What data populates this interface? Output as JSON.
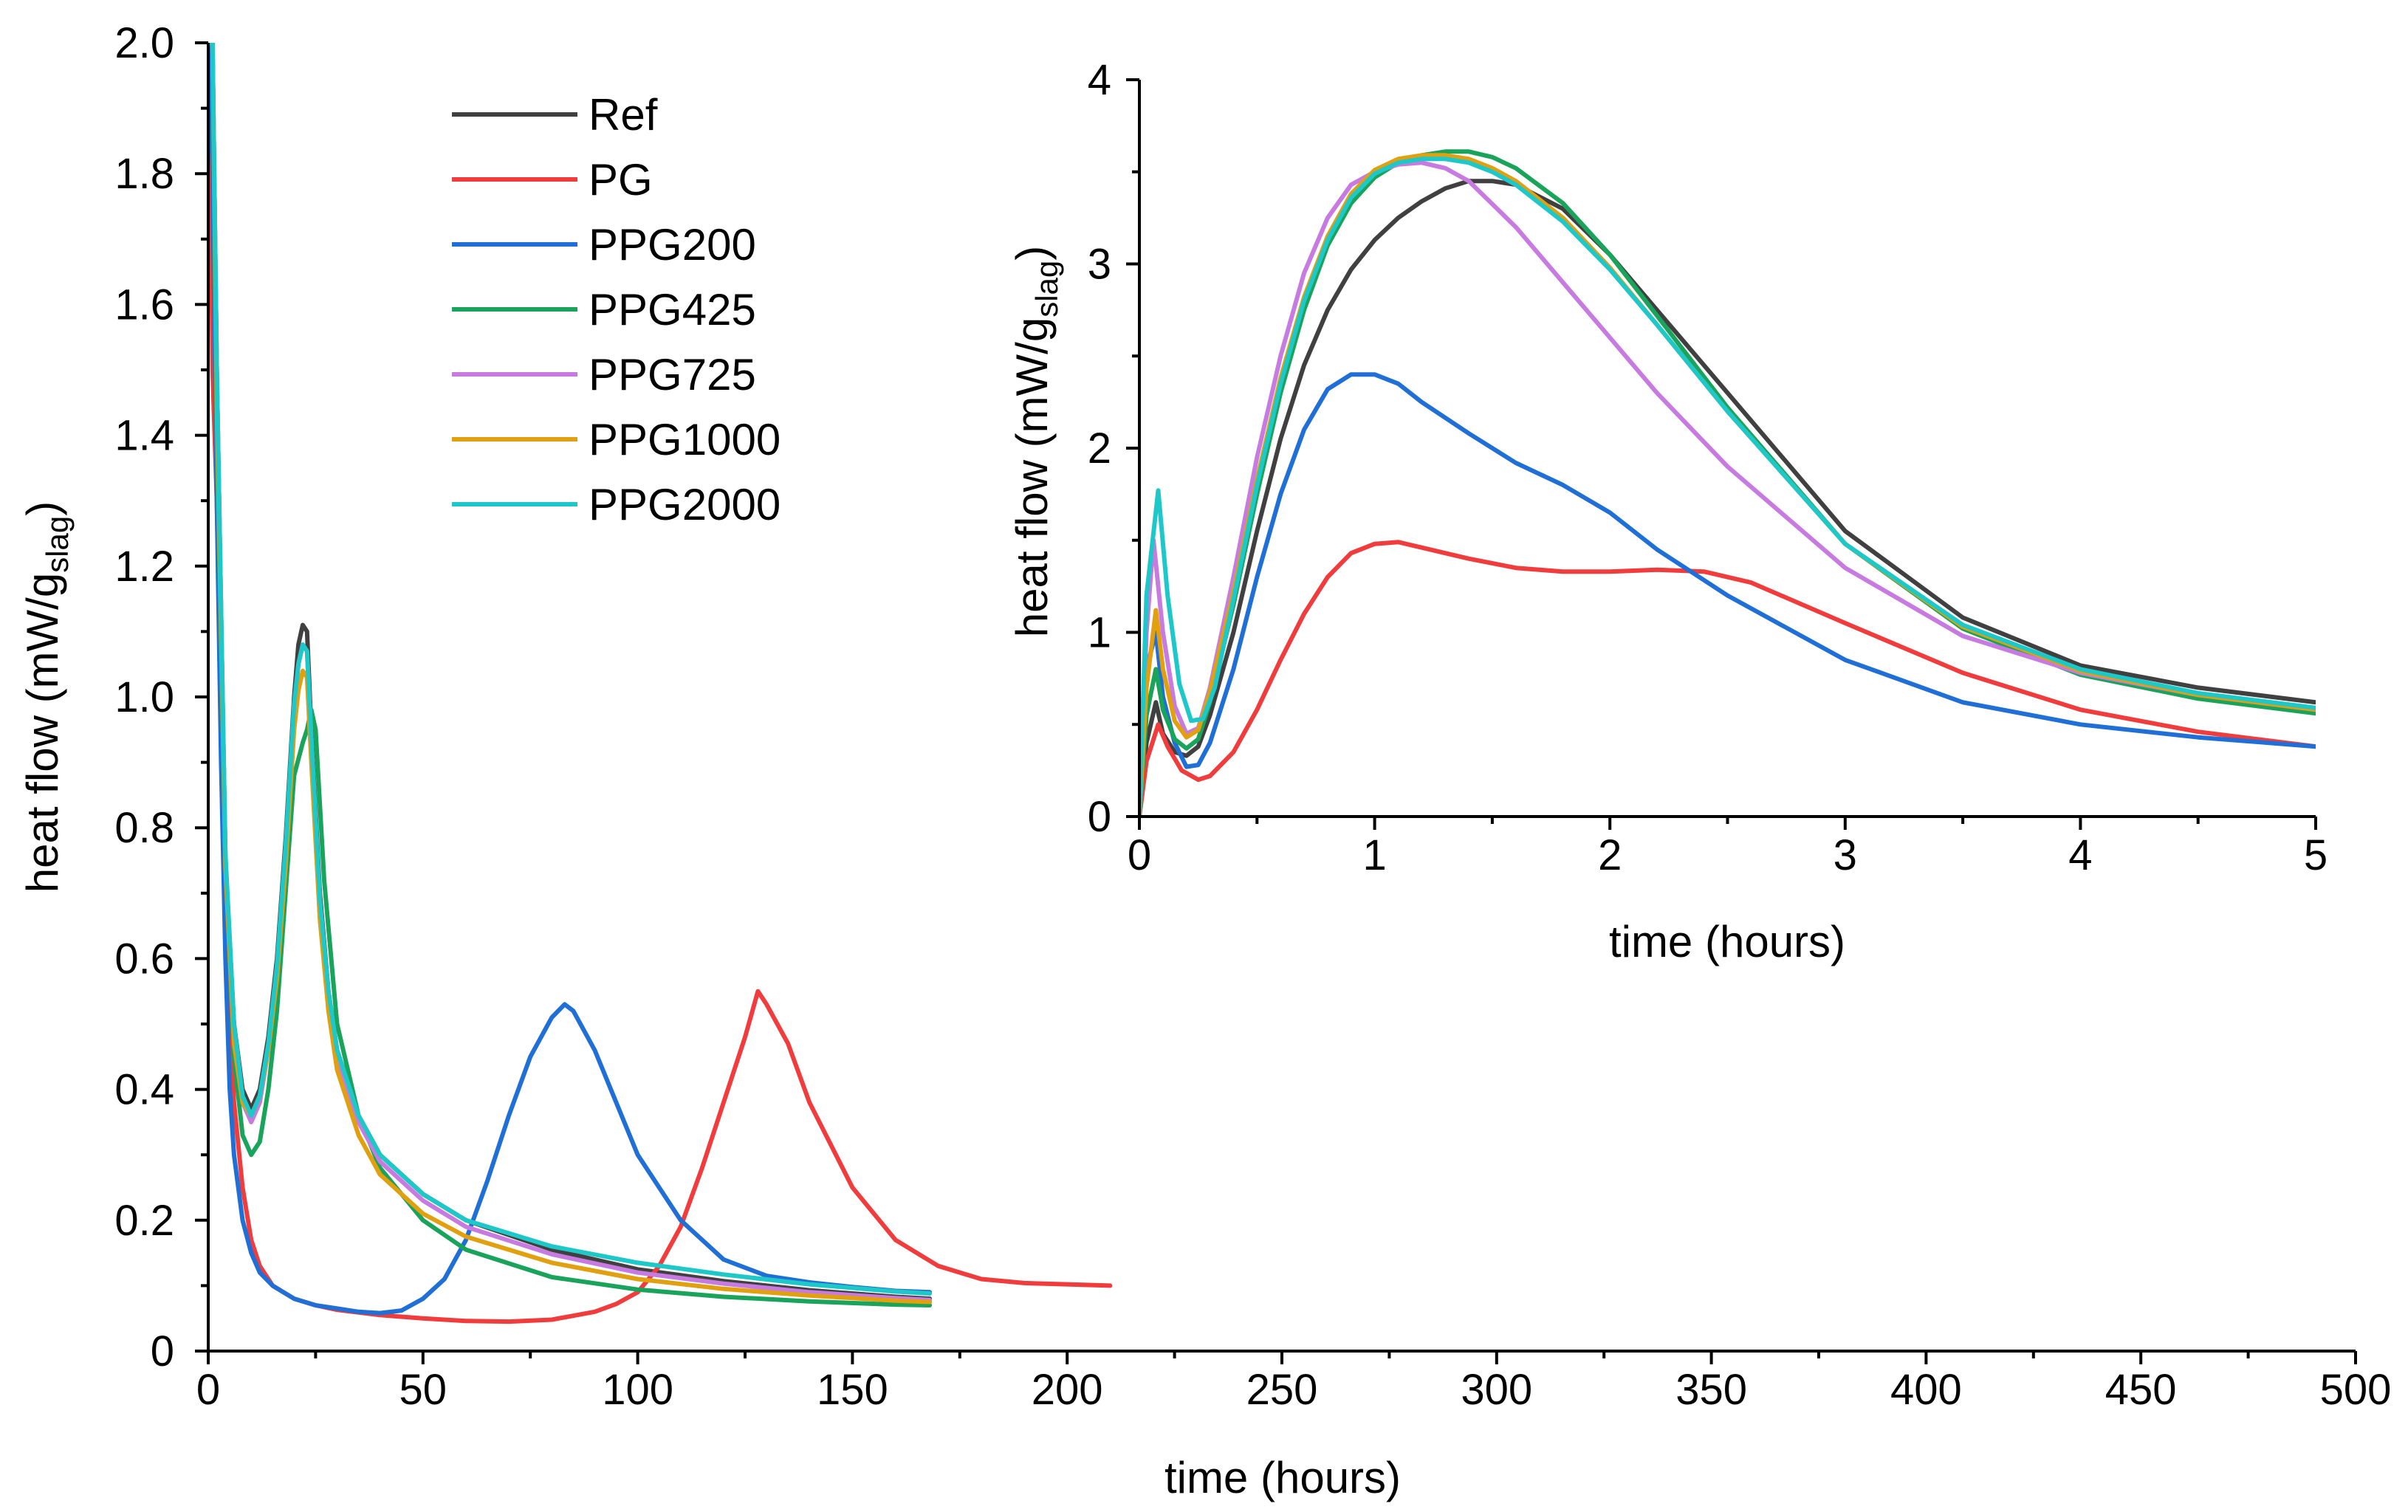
{
  "chart_data": [
    {
      "id": "main",
      "type": "line",
      "title": "",
      "xlabel": "time (hours)",
      "ylabel_main": "heat flow (mW/g",
      "ylabel_sub": "slag",
      "ylabel_close": ")",
      "xlim": [
        0,
        500
      ],
      "ylim": [
        0,
        2.0
      ],
      "xticks": [
        0,
        50,
        100,
        150,
        200,
        250,
        300,
        350,
        400,
        450,
        500
      ],
      "xtick_labels": [
        "0",
        "50",
        "100",
        "150",
        "200",
        "250",
        "300",
        "350",
        "400",
        "450",
        "500"
      ],
      "yticks": [
        0,
        0.2,
        0.4,
        0.6,
        0.8,
        1.0,
        1.2,
        1.4,
        1.6,
        1.8,
        2.0
      ],
      "ytick_labels": [
        "0",
        "0.2",
        "0.4",
        "0.6",
        "0.8",
        "1.0",
        "1.2",
        "1.4",
        "1.6",
        "1.8",
        "2.0"
      ],
      "legend_position": "top-left",
      "series": [
        {
          "name": "Ref",
          "color": "#404040",
          "x": [
            0.3,
            1,
            2,
            4,
            6,
            8,
            10,
            12,
            14,
            16,
            18,
            20,
            21,
            22,
            23,
            24,
            26,
            28,
            30,
            35,
            40,
            50,
            60,
            80,
            100,
            120,
            140,
            160,
            168
          ],
          "y": [
            2.0,
            2.0,
            1.5,
            0.75,
            0.5,
            0.4,
            0.37,
            0.4,
            0.48,
            0.6,
            0.78,
            1.0,
            1.08,
            1.11,
            1.1,
            0.95,
            0.7,
            0.55,
            0.46,
            0.36,
            0.3,
            0.24,
            0.2,
            0.155,
            0.125,
            0.107,
            0.093,
            0.083,
            0.08
          ]
        },
        {
          "name": "PG",
          "color": "#f03c3c",
          "x": [
            0.3,
            1,
            2,
            3,
            4,
            5,
            6,
            8,
            10,
            12,
            15,
            20,
            25,
            30,
            40,
            50,
            60,
            70,
            80,
            90,
            95,
            100,
            105,
            110,
            115,
            120,
            125,
            128,
            130,
            135,
            140,
            150,
            160,
            170,
            180,
            190,
            200,
            210
          ],
          "y": [
            2.0,
            1.5,
            1.3,
            1.0,
            0.7,
            0.5,
            0.38,
            0.25,
            0.17,
            0.13,
            0.1,
            0.08,
            0.07,
            0.063,
            0.055,
            0.05,
            0.046,
            0.045,
            0.048,
            0.06,
            0.072,
            0.09,
            0.13,
            0.19,
            0.28,
            0.38,
            0.48,
            0.55,
            0.53,
            0.47,
            0.38,
            0.25,
            0.17,
            0.13,
            0.11,
            0.104,
            0.102,
            0.1
          ]
        },
        {
          "name": "PPG200",
          "color": "#1f6fd6",
          "x": [
            0.3,
            1,
            2,
            3,
            4,
            5,
            6,
            8,
            10,
            12,
            15,
            20,
            25,
            30,
            35,
            40,
            45,
            50,
            55,
            60,
            65,
            70,
            75,
            80,
            83,
            85,
            90,
            95,
            100,
            110,
            120,
            130,
            140,
            150,
            160,
            168
          ],
          "y": [
            2.0,
            1.8,
            1.3,
            0.9,
            0.6,
            0.4,
            0.3,
            0.2,
            0.15,
            0.12,
            0.1,
            0.08,
            0.07,
            0.065,
            0.06,
            0.058,
            0.062,
            0.08,
            0.11,
            0.17,
            0.26,
            0.36,
            0.45,
            0.51,
            0.53,
            0.52,
            0.46,
            0.38,
            0.3,
            0.2,
            0.14,
            0.115,
            0.105,
            0.098,
            0.092,
            0.09
          ]
        },
        {
          "name": "PPG425",
          "color": "#1aa35a",
          "x": [
            0.3,
            1,
            2,
            4,
            6,
            8,
            10,
            12,
            14,
            16,
            18,
            20,
            22,
            23,
            24,
            25,
            27,
            30,
            35,
            40,
            50,
            60,
            80,
            100,
            120,
            140,
            160,
            168
          ],
          "y": [
            2.0,
            2.0,
            1.4,
            0.75,
            0.45,
            0.33,
            0.3,
            0.32,
            0.4,
            0.52,
            0.7,
            0.88,
            0.93,
            0.95,
            0.98,
            0.95,
            0.72,
            0.5,
            0.36,
            0.28,
            0.2,
            0.155,
            0.113,
            0.094,
            0.083,
            0.076,
            0.071,
            0.07
          ]
        },
        {
          "name": "PPG725",
          "color": "#c77be0",
          "x": [
            0.3,
            1,
            2,
            4,
            6,
            8,
            10,
            12,
            14,
            16,
            18,
            20,
            21,
            22,
            23,
            24,
            26,
            28,
            30,
            35,
            40,
            50,
            60,
            80,
            100,
            120,
            140,
            160,
            168
          ],
          "y": [
            2.0,
            2.0,
            1.5,
            0.75,
            0.48,
            0.38,
            0.35,
            0.38,
            0.46,
            0.58,
            0.76,
            0.98,
            1.05,
            1.08,
            1.07,
            0.93,
            0.68,
            0.54,
            0.45,
            0.35,
            0.29,
            0.23,
            0.19,
            0.148,
            0.12,
            0.103,
            0.09,
            0.081,
            0.078
          ]
        },
        {
          "name": "PPG1000",
          "color": "#e0a010",
          "x": [
            0.3,
            1,
            2,
            4,
            6,
            8,
            10,
            12,
            14,
            16,
            18,
            20,
            21,
            22,
            23,
            24,
            26,
            28,
            30,
            35,
            40,
            50,
            60,
            80,
            100,
            120,
            140,
            160,
            168
          ],
          "y": [
            2.0,
            2.0,
            1.45,
            0.74,
            0.47,
            0.38,
            0.36,
            0.39,
            0.46,
            0.57,
            0.74,
            0.95,
            1.01,
            1.04,
            1.03,
            0.9,
            0.66,
            0.52,
            0.43,
            0.33,
            0.27,
            0.21,
            0.175,
            0.135,
            0.11,
            0.095,
            0.085,
            0.077,
            0.075
          ]
        },
        {
          "name": "PPG2000",
          "color": "#1ec8c8",
          "x": [
            0.3,
            1,
            2,
            4,
            6,
            8,
            10,
            12,
            14,
            16,
            18,
            20,
            21,
            22,
            23,
            24,
            26,
            28,
            30,
            35,
            40,
            50,
            60,
            80,
            100,
            120,
            140,
            160,
            168
          ],
          "y": [
            2.0,
            2.0,
            1.5,
            0.76,
            0.5,
            0.39,
            0.36,
            0.39,
            0.47,
            0.59,
            0.77,
            0.99,
            1.05,
            1.08,
            1.07,
            0.94,
            0.69,
            0.55,
            0.46,
            0.36,
            0.3,
            0.24,
            0.2,
            0.16,
            0.135,
            0.117,
            0.102,
            0.091,
            0.088
          ]
        }
      ]
    },
    {
      "id": "inset",
      "type": "line",
      "title": "",
      "xlabel": "time (hours)",
      "ylabel_main": "heat flow (mW/g",
      "ylabel_sub": "slag",
      "ylabel_close": ")",
      "xlim": [
        0,
        5
      ],
      "ylim": [
        0,
        4
      ],
      "xticks": [
        0,
        1,
        2,
        3,
        4,
        5
      ],
      "xtick_labels": [
        "0",
        "1",
        "2",
        "3",
        "4",
        "5"
      ],
      "yticks": [
        0,
        1,
        2,
        3,
        4
      ],
      "ytick_labels": [
        "0",
        "1",
        "2",
        "3",
        "4"
      ],
      "series": [
        {
          "name": "Ref",
          "color": "#404040",
          "x": [
            0,
            0.03,
            0.07,
            0.1,
            0.15,
            0.2,
            0.25,
            0.3,
            0.4,
            0.5,
            0.6,
            0.7,
            0.8,
            0.9,
            1.0,
            1.1,
            1.2,
            1.3,
            1.4,
            1.5,
            1.6,
            1.8,
            2.0,
            2.2,
            2.5,
            3.0,
            3.5,
            4.0,
            4.5,
            5.0
          ],
          "y": [
            0,
            0.4,
            0.62,
            0.45,
            0.35,
            0.33,
            0.38,
            0.55,
            1.0,
            1.55,
            2.05,
            2.45,
            2.75,
            2.97,
            3.13,
            3.25,
            3.34,
            3.41,
            3.45,
            3.45,
            3.43,
            3.3,
            3.05,
            2.75,
            2.3,
            1.55,
            1.08,
            0.82,
            0.7,
            0.62
          ]
        },
        {
          "name": "PG",
          "color": "#f03c3c",
          "x": [
            0,
            0.03,
            0.08,
            0.12,
            0.18,
            0.25,
            0.3,
            0.4,
            0.5,
            0.6,
            0.7,
            0.8,
            0.9,
            1.0,
            1.1,
            1.2,
            1.4,
            1.6,
            1.8,
            2.0,
            2.2,
            2.4,
            2.6,
            3.0,
            3.5,
            4.0,
            4.5,
            5.0
          ],
          "y": [
            0,
            0.3,
            0.5,
            0.38,
            0.25,
            0.2,
            0.22,
            0.35,
            0.58,
            0.85,
            1.1,
            1.3,
            1.43,
            1.48,
            1.49,
            1.46,
            1.4,
            1.35,
            1.33,
            1.33,
            1.34,
            1.33,
            1.27,
            1.05,
            0.78,
            0.58,
            0.46,
            0.38
          ]
        },
        {
          "name": "PPG200",
          "color": "#1f6fd6",
          "x": [
            0,
            0.03,
            0.07,
            0.1,
            0.15,
            0.2,
            0.25,
            0.3,
            0.4,
            0.5,
            0.6,
            0.7,
            0.8,
            0.9,
            1.0,
            1.1,
            1.2,
            1.4,
            1.6,
            1.8,
            2.0,
            2.2,
            2.5,
            3.0,
            3.5,
            4.0,
            4.5,
            5.0
          ],
          "y": [
            0,
            0.8,
            1.0,
            0.65,
            0.4,
            0.27,
            0.28,
            0.4,
            0.8,
            1.3,
            1.75,
            2.1,
            2.32,
            2.4,
            2.4,
            2.35,
            2.25,
            2.08,
            1.92,
            1.8,
            1.65,
            1.45,
            1.2,
            0.85,
            0.62,
            0.5,
            0.43,
            0.38
          ]
        },
        {
          "name": "PPG425",
          "color": "#1aa35a",
          "x": [
            0,
            0.03,
            0.07,
            0.1,
            0.15,
            0.2,
            0.25,
            0.3,
            0.4,
            0.5,
            0.6,
            0.7,
            0.8,
            0.9,
            1.0,
            1.1,
            1.2,
            1.3,
            1.4,
            1.5,
            1.6,
            1.8,
            2.0,
            2.2,
            2.5,
            3.0,
            3.5,
            4.0,
            4.5,
            5.0
          ],
          "y": [
            0,
            0.55,
            0.8,
            0.58,
            0.42,
            0.37,
            0.42,
            0.62,
            1.15,
            1.75,
            2.3,
            2.75,
            3.1,
            3.33,
            3.47,
            3.55,
            3.59,
            3.61,
            3.61,
            3.58,
            3.52,
            3.33,
            3.05,
            2.72,
            2.22,
            1.48,
            1.02,
            0.77,
            0.64,
            0.56
          ]
        },
        {
          "name": "PPG725",
          "color": "#c77be0",
          "x": [
            0,
            0.03,
            0.06,
            0.1,
            0.15,
            0.2,
            0.25,
            0.3,
            0.4,
            0.5,
            0.6,
            0.7,
            0.8,
            0.9,
            1.0,
            1.1,
            1.2,
            1.3,
            1.4,
            1.6,
            1.8,
            2.0,
            2.2,
            2.5,
            3.0,
            3.5,
            4.0,
            4.5,
            5.0
          ],
          "y": [
            0,
            1.0,
            1.5,
            1.0,
            0.6,
            0.45,
            0.48,
            0.7,
            1.3,
            1.95,
            2.5,
            2.95,
            3.25,
            3.43,
            3.5,
            3.54,
            3.55,
            3.52,
            3.45,
            3.2,
            2.9,
            2.6,
            2.3,
            1.9,
            1.35,
            0.98,
            0.78,
            0.66,
            0.58
          ]
        },
        {
          "name": "PPG1000",
          "color": "#e0a010",
          "x": [
            0,
            0.03,
            0.07,
            0.1,
            0.15,
            0.2,
            0.25,
            0.3,
            0.4,
            0.5,
            0.6,
            0.7,
            0.8,
            0.9,
            1.0,
            1.1,
            1.2,
            1.3,
            1.4,
            1.5,
            1.6,
            1.8,
            2.0,
            2.2,
            2.5,
            3.0,
            3.5,
            4.0,
            4.5,
            5.0
          ],
          "y": [
            0,
            0.7,
            1.12,
            0.8,
            0.52,
            0.43,
            0.47,
            0.68,
            1.22,
            1.83,
            2.38,
            2.82,
            3.15,
            3.38,
            3.51,
            3.57,
            3.59,
            3.59,
            3.57,
            3.52,
            3.45,
            3.25,
            2.98,
            2.67,
            2.2,
            1.48,
            1.03,
            0.79,
            0.66,
            0.58
          ]
        },
        {
          "name": "PPG2000",
          "color": "#1ec8c8",
          "x": [
            0,
            0.03,
            0.08,
            0.12,
            0.17,
            0.22,
            0.27,
            0.32,
            0.4,
            0.5,
            0.6,
            0.7,
            0.8,
            0.9,
            1.0,
            1.1,
            1.2,
            1.3,
            1.4,
            1.5,
            1.6,
            1.8,
            2.0,
            2.2,
            2.5,
            3.0,
            3.5,
            4.0,
            4.5,
            5.0
          ],
          "y": [
            0,
            1.2,
            1.77,
            1.2,
            0.72,
            0.52,
            0.53,
            0.7,
            1.18,
            1.8,
            2.35,
            2.8,
            3.13,
            3.36,
            3.49,
            3.55,
            3.57,
            3.57,
            3.55,
            3.5,
            3.43,
            3.23,
            2.97,
            2.67,
            2.2,
            1.48,
            1.04,
            0.8,
            0.67,
            0.59
          ]
        }
      ]
    }
  ]
}
